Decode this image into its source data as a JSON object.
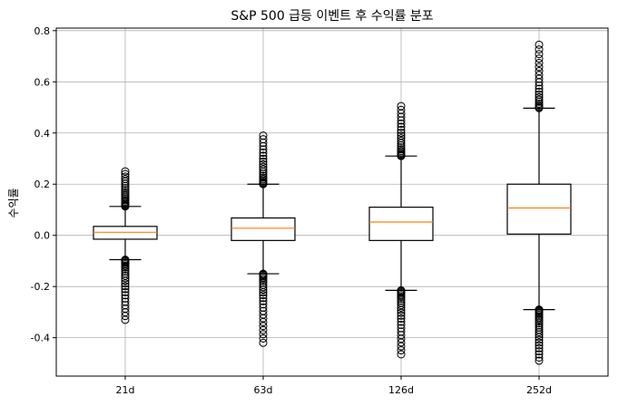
{
  "chart_data": {
    "type": "box",
    "title": "S&P 500 급등 이벤트 후 수익률 분포",
    "xlabel": "",
    "ylabel": "수익률",
    "categories": [
      "21d",
      "63d",
      "126d",
      "252d"
    ],
    "ylim": [
      -0.55,
      0.81
    ],
    "yticks": [
      -0.4,
      -0.2,
      0.0,
      0.2,
      0.4,
      0.6,
      0.8
    ],
    "ytick_labels": [
      "-0.4",
      "-0.2",
      "0.0",
      "0.2",
      "0.4",
      "0.6",
      "0.8"
    ],
    "grid": true,
    "boxes": [
      {
        "name": "21d",
        "whisker_low": -0.095,
        "q1": -0.015,
        "median": 0.012,
        "q3": 0.035,
        "whisker_high": 0.113,
        "outlier_low_range": [
          -0.33,
          -0.095
        ],
        "outlier_high_range": [
          0.113,
          0.25
        ]
      },
      {
        "name": "63d",
        "whisker_low": -0.15,
        "q1": -0.02,
        "median": 0.028,
        "q3": 0.068,
        "whisker_high": 0.2,
        "outlier_low_range": [
          -0.42,
          -0.15
        ],
        "outlier_high_range": [
          0.2,
          0.39
        ]
      },
      {
        "name": "126d",
        "whisker_low": -0.215,
        "q1": -0.02,
        "median": 0.052,
        "q3": 0.11,
        "whisker_high": 0.31,
        "outlier_low_range": [
          -0.465,
          -0.215
        ],
        "outlier_high_range": [
          0.31,
          0.505
        ]
      },
      {
        "name": "252d",
        "whisker_low": -0.29,
        "q1": 0.005,
        "median": 0.107,
        "q3": 0.2,
        "whisker_high": 0.497,
        "outlier_low_range": [
          -0.49,
          -0.29
        ],
        "outlier_high_range": [
          0.497,
          0.745
        ]
      }
    ],
    "colors": {
      "box": "#000000",
      "median": "#ff7f0e",
      "grid": "#b0b0b0"
    }
  }
}
